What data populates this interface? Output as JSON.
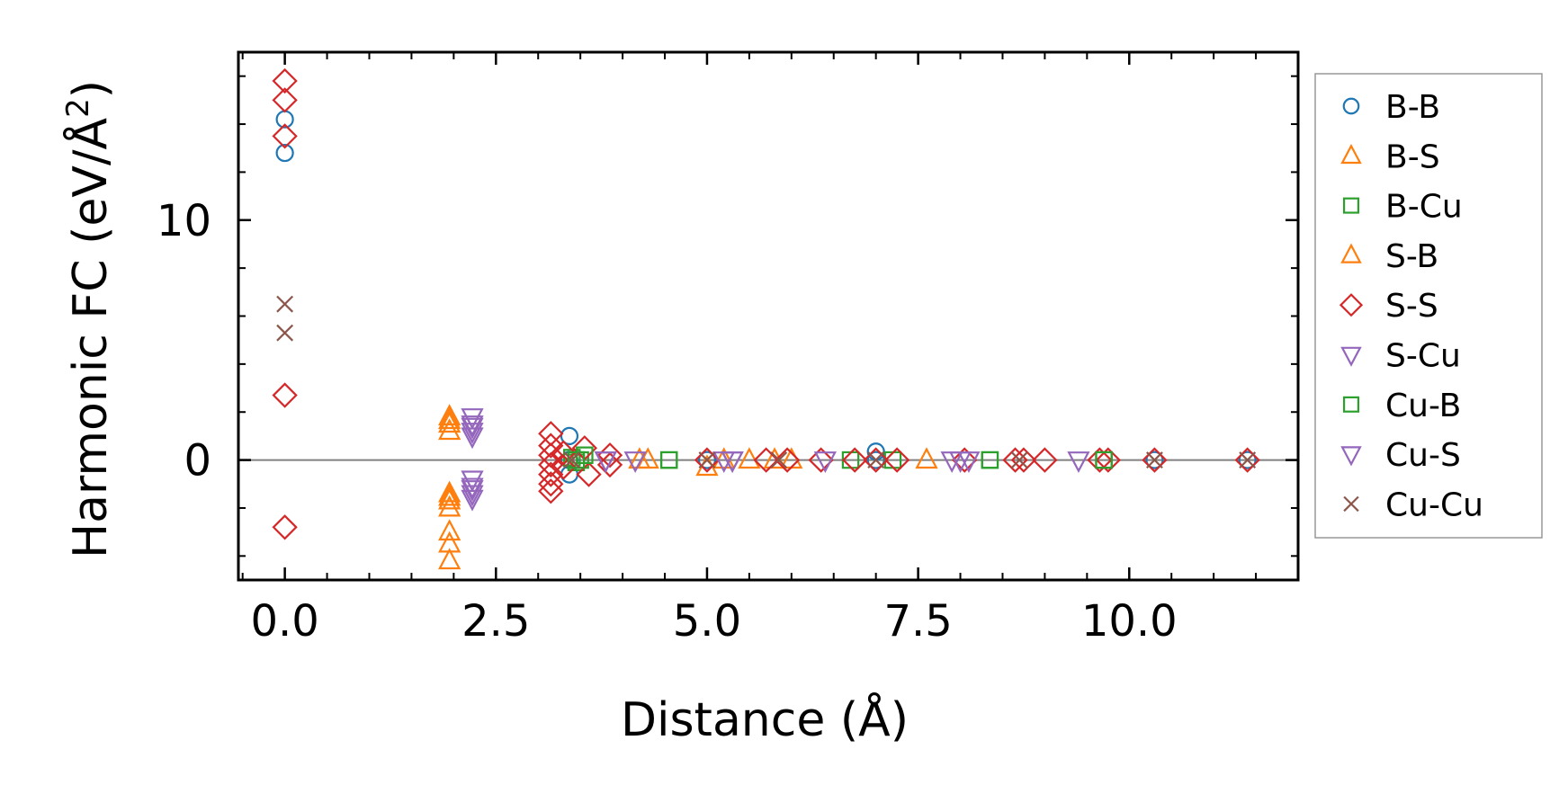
{
  "chart_data": {
    "type": "scatter",
    "title": "",
    "xlabel": "Distance (Å)",
    "ylabel_main": "Harmonic FC (eV/Å",
    "ylabel_sup": "2",
    "ylabel_close": ")",
    "xlim": [
      -0.55,
      12.0
    ],
    "ylim": [
      -5.0,
      17.0
    ],
    "xticks": [
      0.0,
      2.5,
      5.0,
      7.5,
      10.0
    ],
    "xtick_labels": [
      "0.0",
      "2.5",
      "5.0",
      "7.5",
      "10.0"
    ],
    "yticks": [
      0,
      10
    ],
    "ytick_labels": [
      "0",
      "10"
    ],
    "zero_line": true,
    "legend_position": "outside-right",
    "series": [
      {
        "name": "B-B",
        "marker": "circle",
        "color": "#1f77b4",
        "points": [
          [
            0.0,
            14.2
          ],
          [
            0.0,
            12.8
          ],
          [
            3.37,
            1.0
          ],
          [
            3.37,
            0.0
          ],
          [
            3.37,
            -0.6
          ],
          [
            5.0,
            0.0
          ],
          [
            7.0,
            0.35
          ],
          [
            7.0,
            0.0
          ],
          [
            10.3,
            0.0
          ],
          [
            11.4,
            0.0
          ]
        ]
      },
      {
        "name": "B-S",
        "marker": "triangle-up",
        "color": "#ff7f0e",
        "points": [
          [
            1.95,
            1.8
          ],
          [
            1.95,
            1.5
          ],
          [
            1.95,
            1.2
          ],
          [
            1.95,
            -1.4
          ],
          [
            1.95,
            -1.7
          ],
          [
            1.95,
            -2.0
          ],
          [
            1.95,
            -3.0
          ],
          [
            1.95,
            -3.5
          ],
          [
            1.95,
            -4.2
          ],
          [
            4.3,
            0.0
          ],
          [
            5.0,
            -0.3
          ],
          [
            5.5,
            0.0
          ],
          [
            6.0,
            0.0
          ],
          [
            7.6,
            0.0
          ]
        ]
      },
      {
        "name": "B-Cu",
        "marker": "square",
        "color": "#2ca02c",
        "points": [
          [
            3.4,
            0.1
          ],
          [
            3.45,
            -0.1
          ],
          [
            3.5,
            0.0
          ],
          [
            4.55,
            0.0
          ],
          [
            6.7,
            0.0
          ],
          [
            7.2,
            0.0
          ],
          [
            8.35,
            0.0
          ],
          [
            9.7,
            0.0
          ]
        ]
      },
      {
        "name": "S-B",
        "marker": "triangle-up",
        "color": "#ff7f0e",
        "points": [
          [
            1.95,
            1.65
          ],
          [
            1.95,
            -1.55
          ],
          [
            4.2,
            0.0
          ],
          [
            5.2,
            0.0
          ],
          [
            5.8,
            0.0
          ]
        ]
      },
      {
        "name": "S-S",
        "marker": "diamond",
        "color": "#d62728",
        "points": [
          [
            0.0,
            15.8
          ],
          [
            0.0,
            15.0
          ],
          [
            0.0,
            13.5
          ],
          [
            0.0,
            2.7
          ],
          [
            0.0,
            -2.8
          ],
          [
            3.15,
            1.1
          ],
          [
            3.15,
            0.6
          ],
          [
            3.15,
            0.2
          ],
          [
            3.15,
            -0.2
          ],
          [
            3.15,
            -0.6
          ],
          [
            3.15,
            -1.0
          ],
          [
            3.15,
            -1.3
          ],
          [
            3.3,
            0.3
          ],
          [
            3.3,
            -0.3
          ],
          [
            3.55,
            0.5
          ],
          [
            3.6,
            -0.6
          ],
          [
            3.85,
            0.2
          ],
          [
            3.85,
            -0.2
          ],
          [
            5.0,
            0.0
          ],
          [
            5.7,
            0.0
          ],
          [
            5.95,
            0.0
          ],
          [
            6.35,
            0.0
          ],
          [
            6.75,
            0.0
          ],
          [
            7.0,
            0.0
          ],
          [
            7.25,
            0.0
          ],
          [
            8.05,
            0.0
          ],
          [
            8.65,
            0.0
          ],
          [
            8.75,
            0.0
          ],
          [
            9.0,
            0.0
          ],
          [
            9.65,
            0.0
          ],
          [
            9.75,
            0.0
          ],
          [
            10.3,
            0.0
          ],
          [
            11.4,
            0.0
          ]
        ]
      },
      {
        "name": "S-Cu",
        "marker": "triangle-down",
        "color": "#9467bd",
        "points": [
          [
            2.22,
            1.8
          ],
          [
            2.22,
            1.5
          ],
          [
            2.22,
            1.2
          ],
          [
            2.22,
            1.0
          ],
          [
            2.22,
            -0.8
          ],
          [
            2.22,
            -1.1
          ],
          [
            2.22,
            -1.4
          ],
          [
            2.22,
            -1.6
          ],
          [
            3.8,
            0.0
          ],
          [
            4.15,
            0.0
          ],
          [
            5.2,
            0.0
          ],
          [
            5.3,
            0.0
          ],
          [
            6.4,
            0.0
          ],
          [
            7.9,
            0.0
          ],
          [
            8.1,
            0.0
          ],
          [
            9.4,
            0.0
          ]
        ]
      },
      {
        "name": "Cu-B",
        "marker": "square",
        "color": "#2ca02c",
        "points": [
          [
            3.45,
            0.0
          ],
          [
            3.55,
            0.2
          ],
          [
            4.55,
            0.0
          ],
          [
            8.35,
            0.0
          ],
          [
            9.7,
            0.0
          ]
        ]
      },
      {
        "name": "Cu-S",
        "marker": "triangle-down",
        "color": "#9467bd",
        "points": [
          [
            2.22,
            1.4
          ],
          [
            2.22,
            -1.2
          ],
          [
            3.8,
            0.0
          ],
          [
            5.3,
            0.0
          ],
          [
            8.0,
            0.0
          ]
        ]
      },
      {
        "name": "Cu-Cu",
        "marker": "x",
        "color": "#8c564b",
        "points": [
          [
            0.0,
            6.5
          ],
          [
            0.0,
            5.3
          ],
          [
            3.4,
            0.0
          ],
          [
            5.0,
            0.0
          ],
          [
            5.85,
            0.0
          ],
          [
            7.0,
            0.0
          ],
          [
            8.7,
            0.0
          ],
          [
            10.3,
            0.0
          ],
          [
            11.4,
            0.0
          ]
        ]
      }
    ]
  }
}
